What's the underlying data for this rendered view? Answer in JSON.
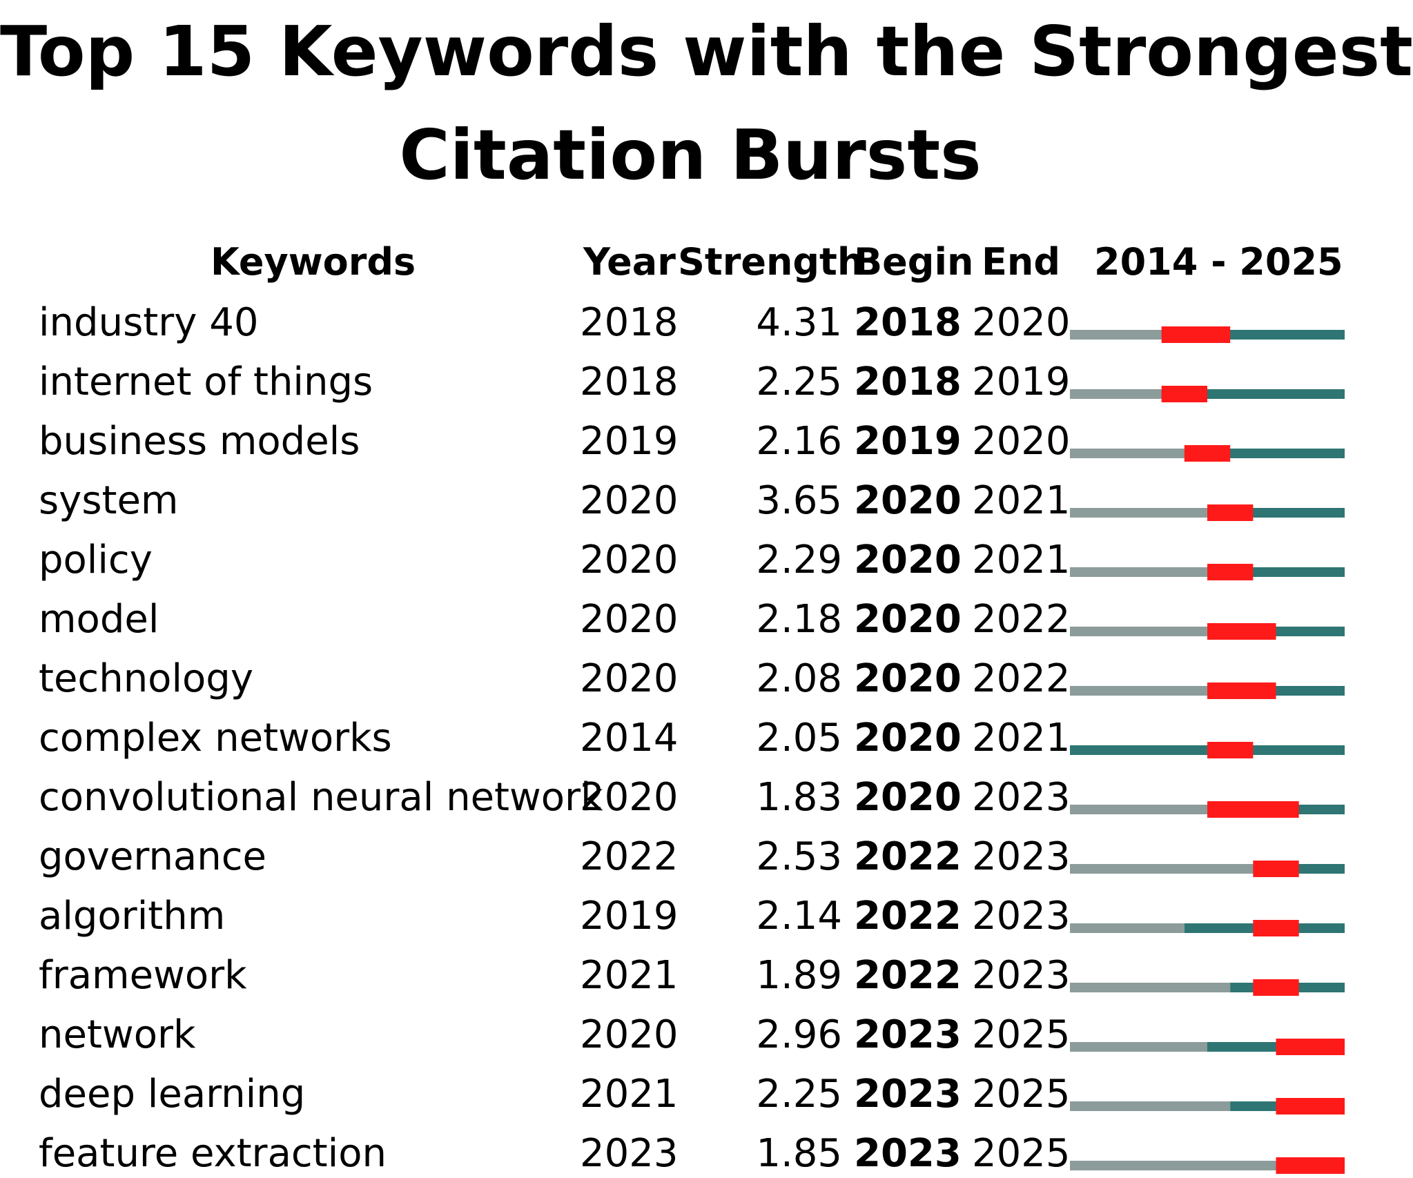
{
  "chart_data": {
    "type": "table",
    "title": "Top 15 Keywords with the Strongest Citation Bursts",
    "title_lines": [
      "Top 15 Keywords with the Strongest",
      "Citation Bursts"
    ],
    "columns": [
      "Keywords",
      "Year",
      "Strength",
      "Begin",
      "End",
      "2014 - 2025"
    ],
    "timeline_range": [
      2014,
      2025
    ],
    "colors": {
      "before": "#8c9c9a",
      "active": "#2e7573",
      "burst": "#ff1a1a"
    },
    "rows": [
      {
        "keyword": "industry 40",
        "year": "2018",
        "strength": "4.31",
        "begin": "2018",
        "end": "2020"
      },
      {
        "keyword": "internet of things",
        "year": "2018",
        "strength": "2.25",
        "begin": "2018",
        "end": "2019"
      },
      {
        "keyword": "business models",
        "year": "2019",
        "strength": "2.16",
        "begin": "2019",
        "end": "2020"
      },
      {
        "keyword": "system",
        "year": "2020",
        "strength": "3.65",
        "begin": "2020",
        "end": "2021"
      },
      {
        "keyword": "policy",
        "year": "2020",
        "strength": "2.29",
        "begin": "2020",
        "end": "2021"
      },
      {
        "keyword": "model",
        "year": "2020",
        "strength": "2.18",
        "begin": "2020",
        "end": "2022"
      },
      {
        "keyword": "technology",
        "year": "2020",
        "strength": "2.08",
        "begin": "2020",
        "end": "2022"
      },
      {
        "keyword": "complex networks",
        "year": "2014",
        "strength": "2.05",
        "begin": "2020",
        "end": "2021"
      },
      {
        "keyword": "convolutional neural network",
        "year": "2020",
        "strength": "1.83",
        "begin": "2020",
        "end": "2023"
      },
      {
        "keyword": "governance",
        "year": "2022",
        "strength": "2.53",
        "begin": "2022",
        "end": "2023"
      },
      {
        "keyword": "algorithm",
        "year": "2019",
        "strength": "2.14",
        "begin": "2022",
        "end": "2023"
      },
      {
        "keyword": "framework",
        "year": "2021",
        "strength": "1.89",
        "begin": "2022",
        "end": "2023"
      },
      {
        "keyword": "network",
        "year": "2020",
        "strength": "2.96",
        "begin": "2023",
        "end": "2025"
      },
      {
        "keyword": "deep learning",
        "year": "2021",
        "strength": "2.25",
        "begin": "2023",
        "end": "2025"
      },
      {
        "keyword": "feature extraction",
        "year": "2023",
        "strength": "1.85",
        "begin": "2023",
        "end": "2025"
      }
    ]
  }
}
